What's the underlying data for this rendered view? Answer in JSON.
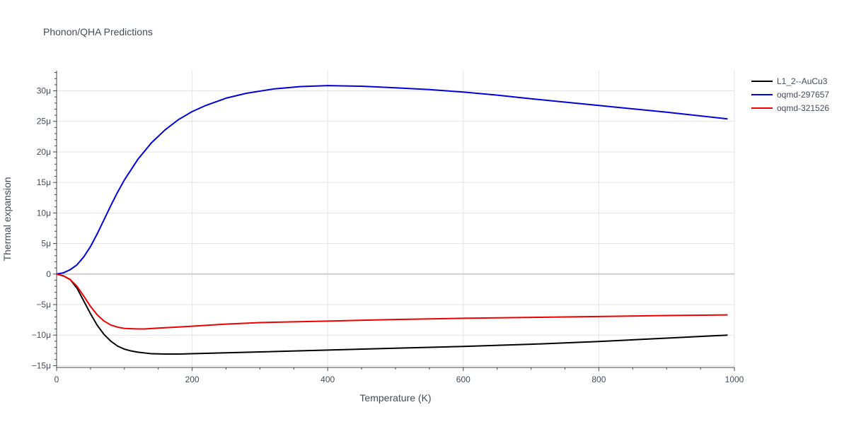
{
  "chart_data": {
    "type": "line",
    "title": "Phonon/QHA Predictions",
    "xlabel": "Temperature (K)",
    "ylabel": "Thermal expansion",
    "xlim": [
      0,
      1000
    ],
    "ylim": [
      -15.3,
      33.3
    ],
    "x_ticks": [
      0,
      200,
      400,
      600,
      800,
      1000
    ],
    "x_tick_labels": [
      "0",
      "200",
      "400",
      "600",
      "800",
      "1000"
    ],
    "y_ticks": [
      -15,
      -10,
      -5,
      0,
      5,
      10,
      15,
      20,
      25,
      30
    ],
    "y_tick_labels": [
      "−15μ",
      "−10μ",
      "−5μ",
      "0",
      "5μ",
      "10μ",
      "15μ",
      "20μ",
      "25μ",
      "30μ"
    ],
    "grid": true,
    "legend_position": "top-right",
    "series": [
      {
        "name": "L1_2--AuCu3",
        "color": "#000000",
        "x": [
          0,
          10,
          20,
          30,
          40,
          50,
          60,
          70,
          80,
          90,
          100,
          110,
          120,
          140,
          160,
          180,
          200,
          250,
          300,
          400,
          500,
          600,
          700,
          800,
          900,
          990
        ],
        "y": [
          0,
          -0.3,
          -0.9,
          -2.3,
          -4.4,
          -6.5,
          -8.4,
          -9.9,
          -11.0,
          -11.8,
          -12.3,
          -12.6,
          -12.8,
          -13.05,
          -13.1,
          -13.1,
          -13.05,
          -12.9,
          -12.75,
          -12.45,
          -12.15,
          -11.85,
          -11.5,
          -11.05,
          -10.5,
          -10.0
        ]
      },
      {
        "name": "oqmd-297657",
        "color": "#0000dd",
        "x": [
          0,
          10,
          20,
          30,
          40,
          50,
          60,
          70,
          80,
          90,
          100,
          120,
          140,
          160,
          180,
          200,
          220,
          250,
          280,
          320,
          360,
          400,
          450,
          500,
          550,
          600,
          650,
          700,
          800,
          900,
          990
        ],
        "y": [
          0,
          0.2,
          0.7,
          1.5,
          2.8,
          4.5,
          6.6,
          8.9,
          11.2,
          13.4,
          15.4,
          18.8,
          21.5,
          23.6,
          25.3,
          26.6,
          27.6,
          28.8,
          29.6,
          30.3,
          30.7,
          30.85,
          30.75,
          30.5,
          30.2,
          29.8,
          29.3,
          28.7,
          27.6,
          26.5,
          25.4
        ]
      },
      {
        "name": "oqmd-321526",
        "color": "#ee0000",
        "x": [
          0,
          10,
          20,
          30,
          40,
          50,
          60,
          70,
          80,
          90,
          100,
          110,
          120,
          130,
          150,
          200,
          250,
          300,
          400,
          500,
          600,
          700,
          800,
          900,
          990
        ],
        "y": [
          0,
          -0.3,
          -0.9,
          -2.0,
          -3.6,
          -5.3,
          -6.7,
          -7.7,
          -8.35,
          -8.7,
          -8.9,
          -8.95,
          -9.0,
          -9.0,
          -8.85,
          -8.55,
          -8.2,
          -7.95,
          -7.7,
          -7.45,
          -7.25,
          -7.1,
          -6.95,
          -6.8,
          -6.7
        ]
      }
    ]
  }
}
